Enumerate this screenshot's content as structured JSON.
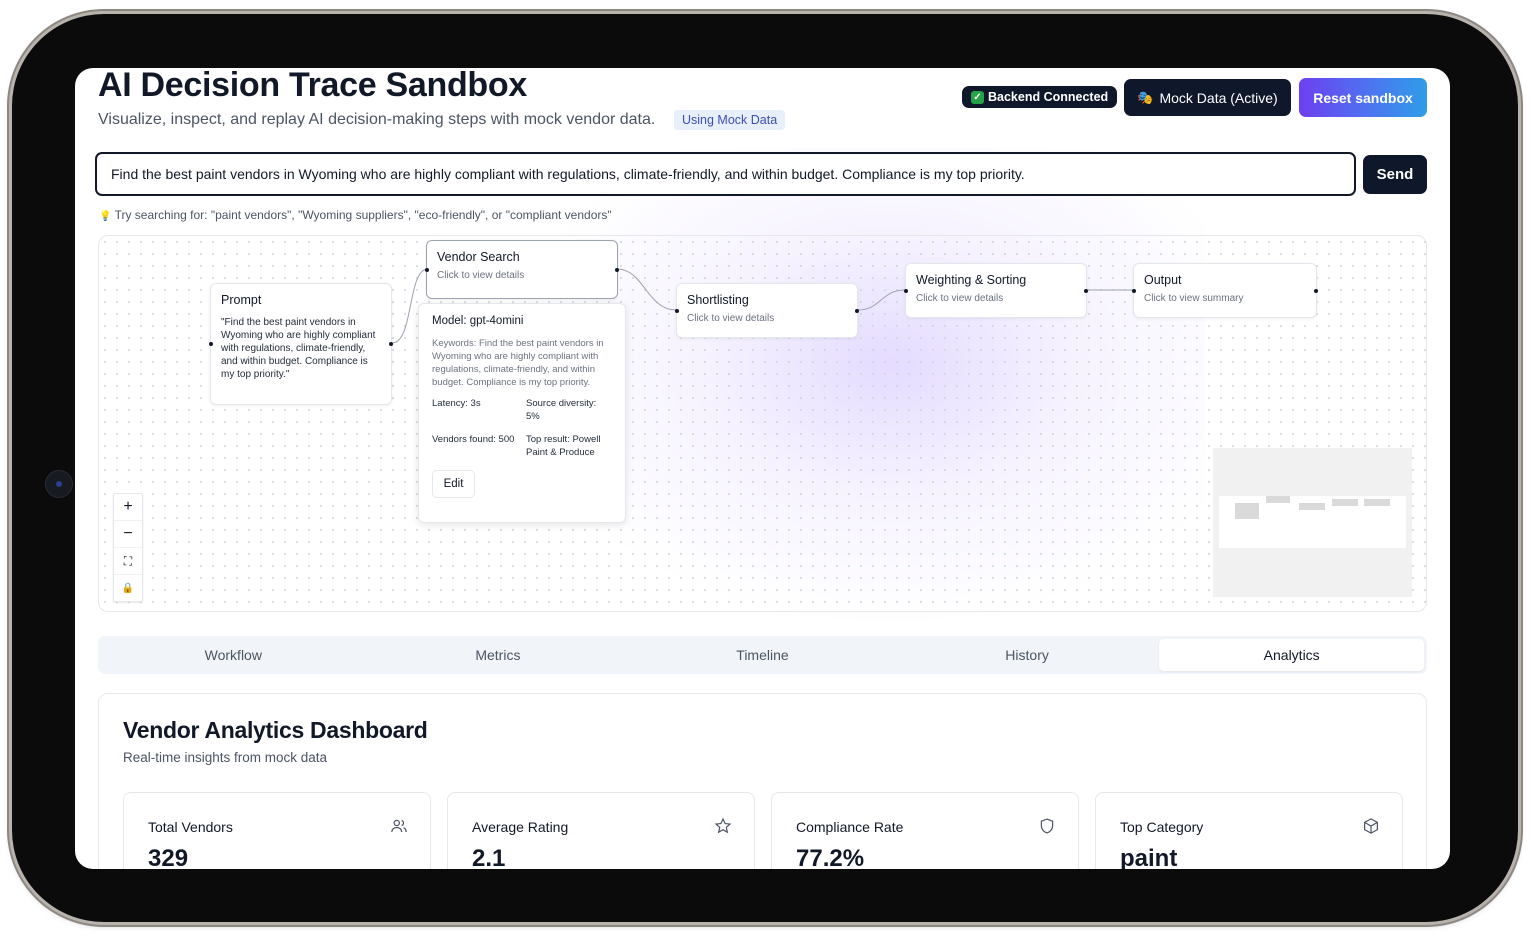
{
  "header": {
    "title": "AI Decision Trace Sandbox",
    "subtitle": "Visualize, inspect, and replay AI decision-making steps with mock vendor data.",
    "mock_pill": "Using Mock Data",
    "backend_badge": "Backend Connected",
    "mock_button": "Mock Data (Active)",
    "reset_button": "Reset sandbox"
  },
  "prompt": {
    "value": "Find the best paint vendors in Wyoming who are highly compliant with regulations, climate-friendly, and within budget. Compliance is my top priority.",
    "send_label": "Send",
    "hint": "Try searching for: \"paint vendors\", \"Wyoming suppliers\", \"eco-friendly\", or \"compliant vendors\""
  },
  "flow": {
    "prompt_node": {
      "title": "Prompt",
      "text": "\"Find the best paint vendors in Wyoming who are highly compliant with regulations, climate-friendly, and within budget. Compliance is my top priority.\""
    },
    "vendor_search": {
      "title": "Vendor Search",
      "sub": "Click to view details"
    },
    "shortlisting": {
      "title": "Shortlisting",
      "sub": "Click to view details"
    },
    "weighting": {
      "title": "Weighting & Sorting",
      "sub": "Click to view details"
    },
    "output": {
      "title": "Output",
      "sub": "Click to view summary"
    },
    "details": {
      "model": "Model: gpt-4omini",
      "keywords": "Keywords: Find the best paint vendors in Wyoming who are highly compliant with regulations, climate-friendly, and within budget. Compliance is my top priority.",
      "latency": "Latency: 3s",
      "source_diversity": "Source diversity: 5%",
      "vendors_found": "Vendors found: 500",
      "top_result": "Top result: Powell Paint & Produce",
      "edit_label": "Edit"
    },
    "controls": [
      "+",
      "−",
      "⛶",
      "🔒"
    ]
  },
  "tabs": [
    {
      "label": "Workflow",
      "active": false
    },
    {
      "label": "Metrics",
      "active": false
    },
    {
      "label": "Timeline",
      "active": false
    },
    {
      "label": "History",
      "active": false
    },
    {
      "label": "Analytics",
      "active": true
    }
  ],
  "dashboard": {
    "title": "Vendor Analytics Dashboard",
    "subtitle": "Real-time insights from mock data",
    "cards": [
      {
        "label": "Total Vendors",
        "value": "329",
        "icon": "users-icon"
      },
      {
        "label": "Average Rating",
        "value": "2.1",
        "icon": "star-icon"
      },
      {
        "label": "Compliance Rate",
        "value": "77.2%",
        "icon": "shield-icon"
      },
      {
        "label": "Top Category",
        "value": "paint",
        "icon": "box-icon"
      }
    ]
  },
  "colors": {
    "primary_dark": "#0f172a",
    "success": "#22a447",
    "reset_gradient_start": "#6d3ff0",
    "reset_gradient_end": "#2f9de8",
    "mock_pill_bg": "#e7eefc"
  }
}
